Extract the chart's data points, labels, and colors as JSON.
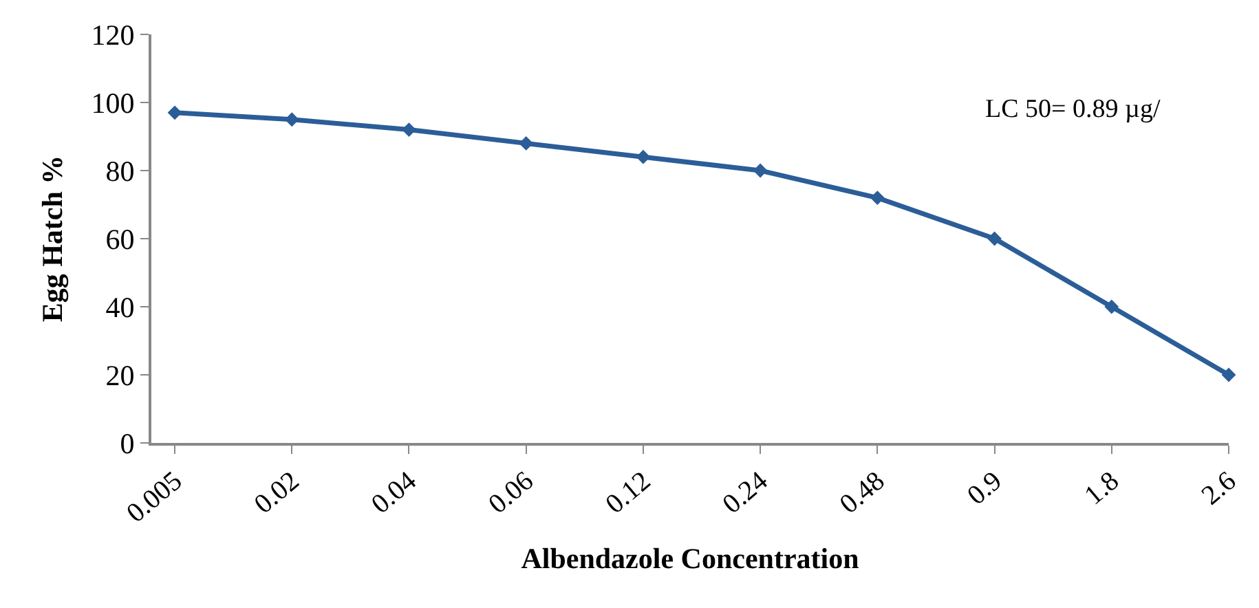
{
  "chart_data": {
    "type": "line",
    "xlabel": "Albendazole Concentration",
    "ylabel": "Egg Hatch %",
    "categories": [
      "0.005",
      "0.02",
      "0.04",
      "0.06",
      "0.12",
      "0.24",
      "0.48",
      "0.9",
      "1.8",
      "2.6"
    ],
    "series": [
      {
        "color": "#2b5d98",
        "values": [
          97,
          95,
          92,
          88,
          84,
          80,
          72,
          60,
          40,
          20
        ]
      }
    ],
    "ylim": [
      0,
      120
    ],
    "yticks": [
      0,
      20,
      40,
      60,
      80,
      100,
      120
    ],
    "marker": "diamond",
    "line_style": "solid",
    "annotations": [
      "LC 50= 0.89 µg/"
    ]
  }
}
